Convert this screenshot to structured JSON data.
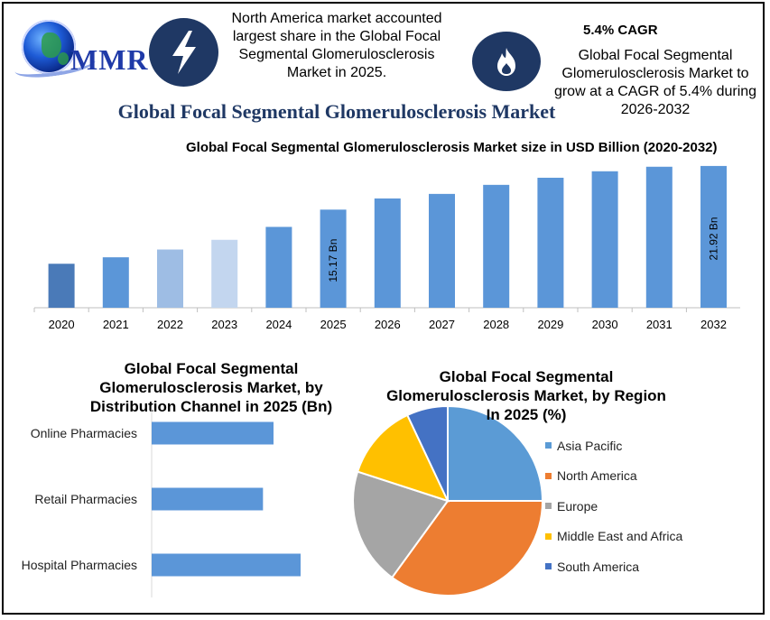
{
  "logo": {
    "text": "MMR"
  },
  "header": {
    "headline": "North America market accounted largest share in the Global Focal Segmental Glomerulosclerosis Market in 2025.",
    "cagr_title": "5.4% CAGR",
    "cagr_text": "Global Focal Segmental Glomerulosclerosis Market to grow at a CAGR of 5.4% during 2026-2032",
    "main_title": "Global Focal Segmental Glomerulosclerosis Market",
    "icons": [
      "lightning-icon",
      "flame-icon"
    ]
  },
  "chart_data": [
    {
      "type": "bar",
      "title": "Global Focal Segmental Glomerulosclerosis Market size in USD Billion (2020-2032)",
      "categories": [
        "2020",
        "2021",
        "2022",
        "2023",
        "2024",
        "2025",
        "2026",
        "2027",
        "2028",
        "2029",
        "2030",
        "2031",
        "2032"
      ],
      "values": [
        6.8,
        7.8,
        9.0,
        10.5,
        12.5,
        15.17,
        16.9,
        17.6,
        19.0,
        20.1,
        21.1,
        21.8,
        21.92
      ],
      "colors": [
        "#4a7ab8",
        "#5b96d8",
        "#9ebde4",
        "#c3d6ef",
        "#5b96d8",
        "#5b96d8",
        "#5b96d8",
        "#5b96d8",
        "#5b96d8",
        "#5b96d8",
        "#5b96d8",
        "#5b96d8",
        "#5b96d8"
      ],
      "data_labels": {
        "2025": "15.17 Bn",
        "2032": "21.92 Bn"
      },
      "ylim": [
        0,
        24
      ],
      "grid": false
    },
    {
      "type": "bar",
      "orientation": "horizontal",
      "title": "Global Focal Segmental Glomerulosclerosis Market, by Distribution Channel  in 2025 (Bn)",
      "categories": [
        "Online Pharmacies",
        "Retail Pharmacies",
        "Hospital Pharmacies"
      ],
      "values": [
        4.05,
        3.7,
        4.95
      ],
      "color": "#5b96d8",
      "xlim": [
        0,
        6
      ]
    },
    {
      "type": "pie",
      "title": "Global Focal Segmental Glomerulosclerosis Market, by Region In 2025 (%)",
      "labels": [
        "Asia Pacific",
        "North America",
        "Europe",
        "Middle East and Africa",
        "South America"
      ],
      "values": [
        25,
        35,
        20,
        13,
        7
      ],
      "colors": [
        "#5b9bd5",
        "#ed7d31",
        "#a5a5a5",
        "#ffc000",
        "#4472c4"
      ],
      "legend": "right"
    }
  ]
}
